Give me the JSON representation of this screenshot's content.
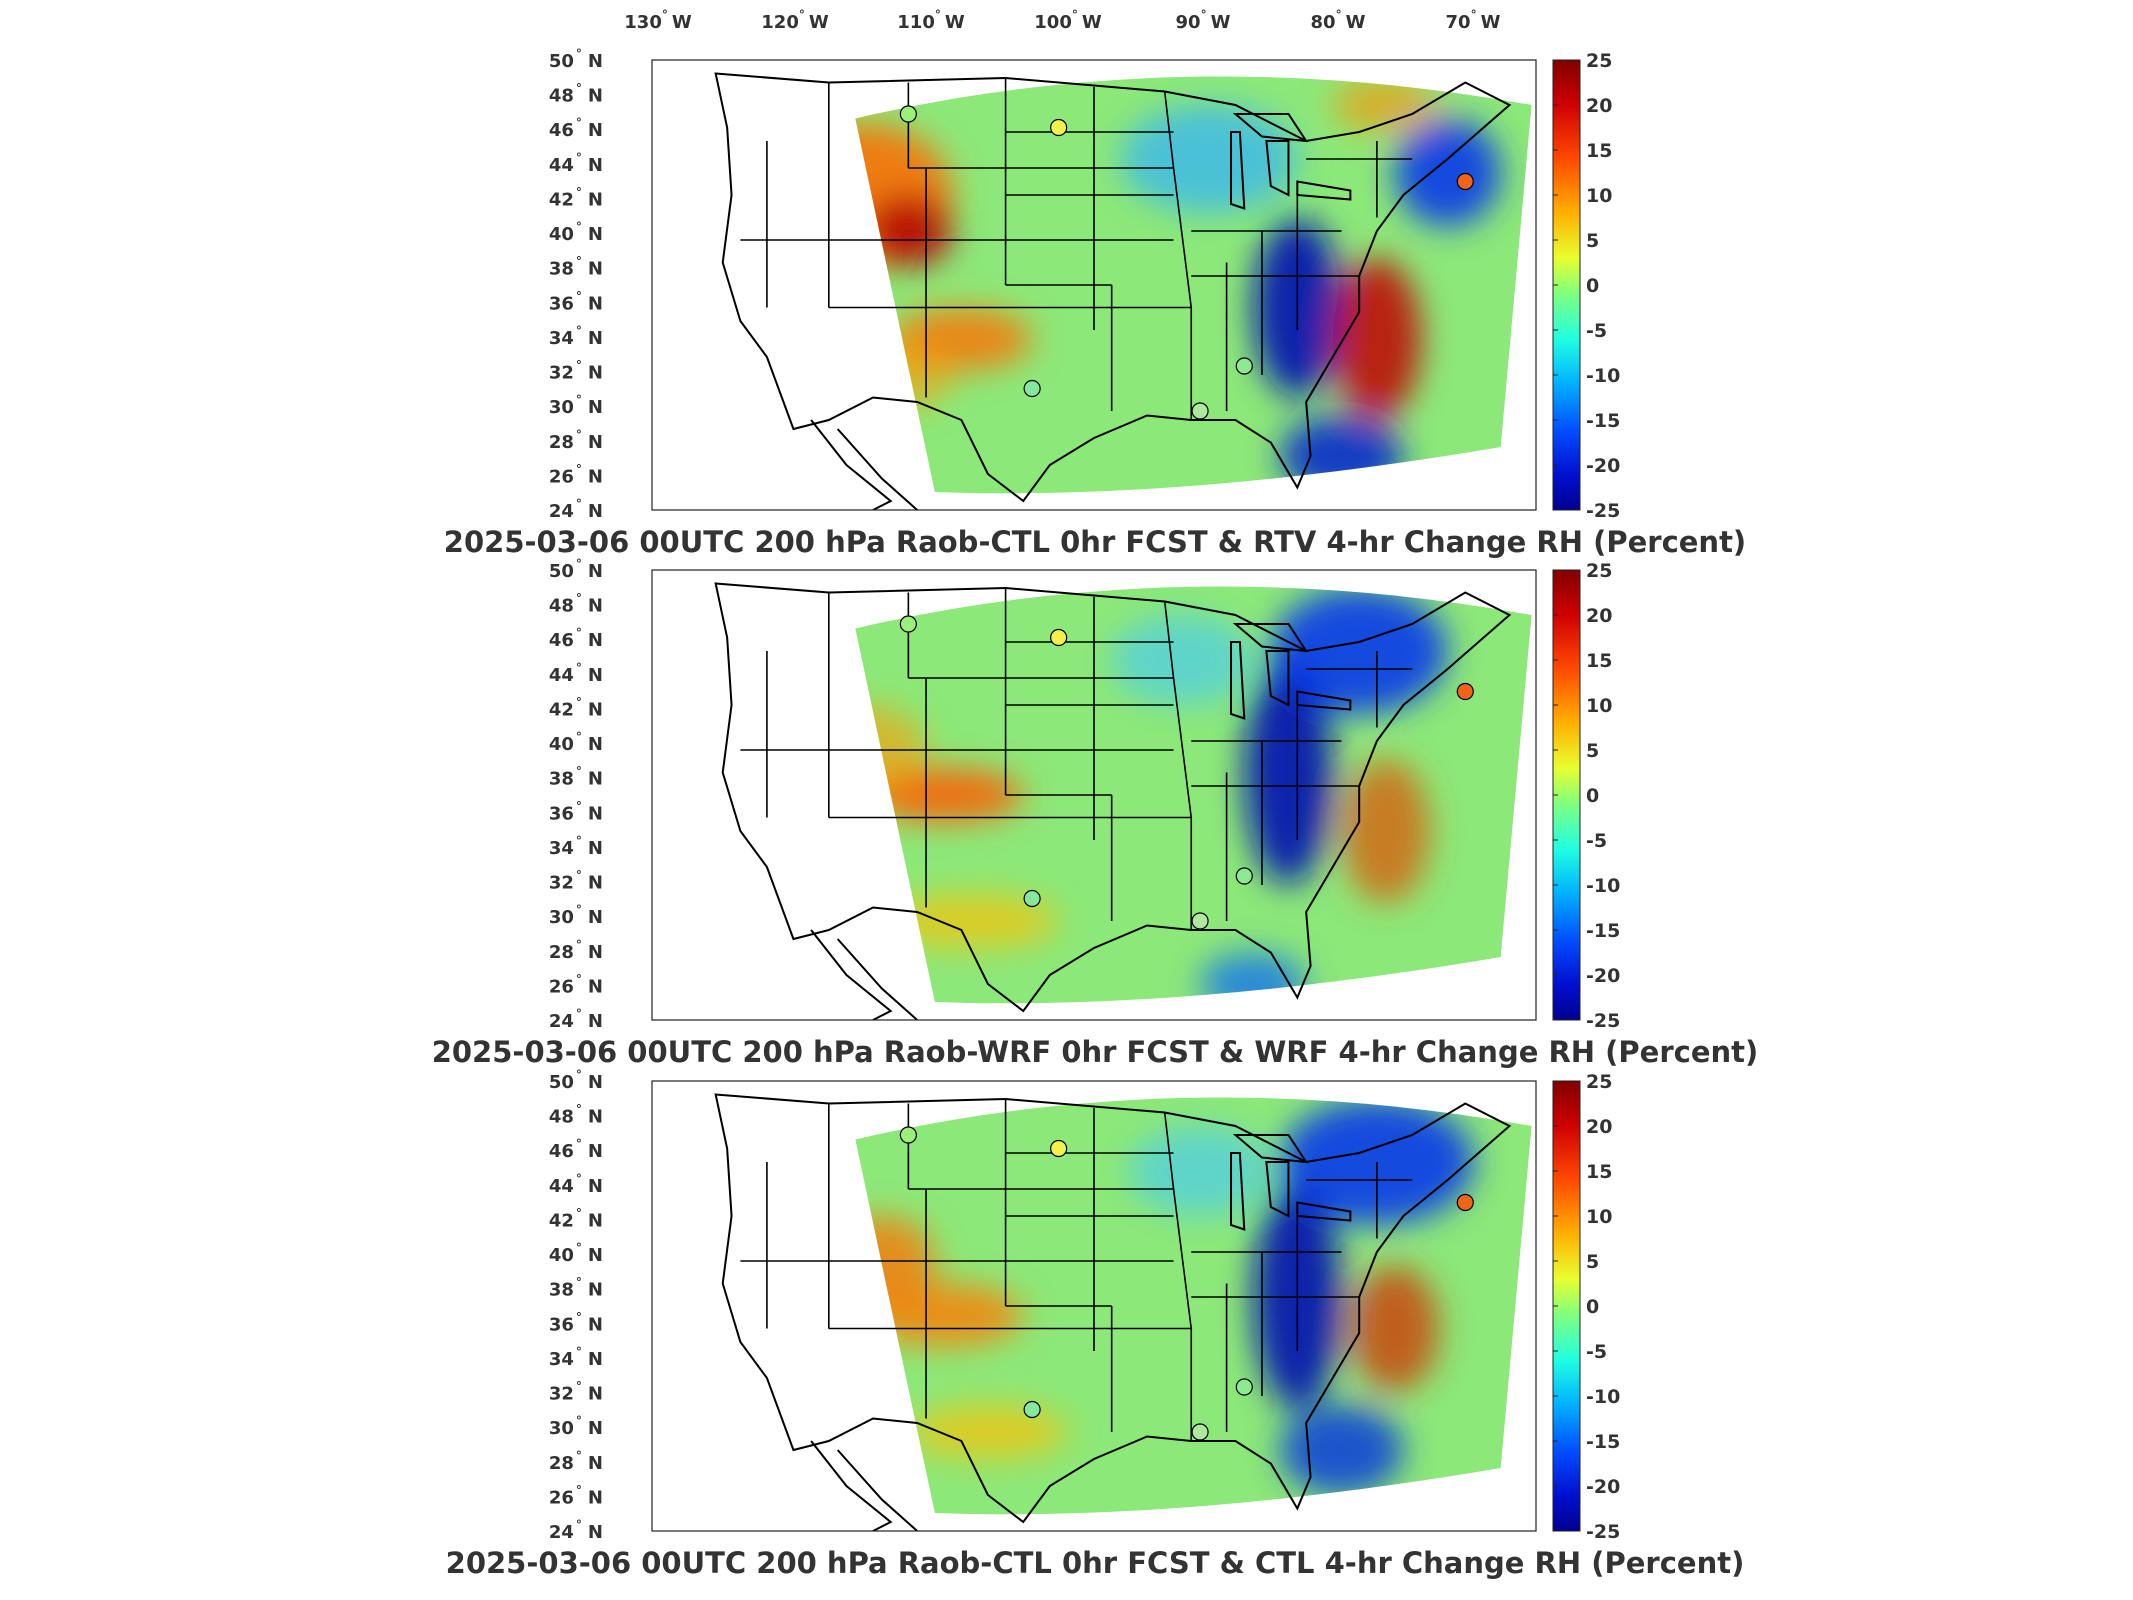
{
  "lon_labels": [
    {
      "deg": "130",
      "hemi": "W"
    },
    {
      "deg": "120",
      "hemi": "W"
    },
    {
      "deg": "110",
      "hemi": "W"
    },
    {
      "deg": "100",
      "hemi": "W"
    },
    {
      "deg": "90",
      "hemi": "W"
    },
    {
      "deg": "80",
      "hemi": "W"
    },
    {
      "deg": "70",
      "hemi": "W"
    }
  ],
  "lat_labels": [
    {
      "deg": "50",
      "hemi": "N"
    },
    {
      "deg": "48",
      "hemi": "N"
    },
    {
      "deg": "46",
      "hemi": "N"
    },
    {
      "deg": "44",
      "hemi": "N"
    },
    {
      "deg": "42",
      "hemi": "N"
    },
    {
      "deg": "40",
      "hemi": "N"
    },
    {
      "deg": "38",
      "hemi": "N"
    },
    {
      "deg": "36",
      "hemi": "N"
    },
    {
      "deg": "34",
      "hemi": "N"
    },
    {
      "deg": "32",
      "hemi": "N"
    },
    {
      "deg": "30",
      "hemi": "N"
    },
    {
      "deg": "28",
      "hemi": "N"
    },
    {
      "deg": "26",
      "hemi": "N"
    },
    {
      "deg": "24",
      "hemi": "N"
    }
  ],
  "colorbar": {
    "ticks": [
      "25",
      "20",
      "15",
      "10",
      "5",
      "0",
      "-5",
      "-10",
      "-15",
      "-20",
      "-25"
    ],
    "colors": [
      "#800000",
      "#c80000",
      "#ff3a00",
      "#ff9000",
      "#ffe000",
      "#c0ff40",
      "#70ff90",
      "#20ffdf",
      "#00c0ff",
      "#0060ff",
      "#0010d0",
      "#00008f"
    ]
  },
  "panels": [
    {
      "title": "2025-03-06 00UTC 200 hPa Raob-CTL 0hr FCST & RTV 4-hr Change RH (Percent)"
    },
    {
      "title": "2025-03-06 00UTC 200 hPa Raob-WRF 0hr FCST & WRF 4-hr Change RH (Percent)"
    },
    {
      "title": "2025-03-06 00UTC 200 hPa Raob-CTL 0hr FCST & CTL 4-hr Change RH (Percent)"
    }
  ],
  "stations": [
    {
      "name": "nw",
      "color": "#9cf07a"
    },
    {
      "name": "north",
      "color": "#f4f04a"
    },
    {
      "name": "southwest",
      "color": "#86e8a0"
    },
    {
      "name": "southeast",
      "color": "#8ee890"
    },
    {
      "name": "ne",
      "color": "#f0631a"
    },
    {
      "name": "gulf",
      "color": "#b0e8a0"
    }
  ]
}
